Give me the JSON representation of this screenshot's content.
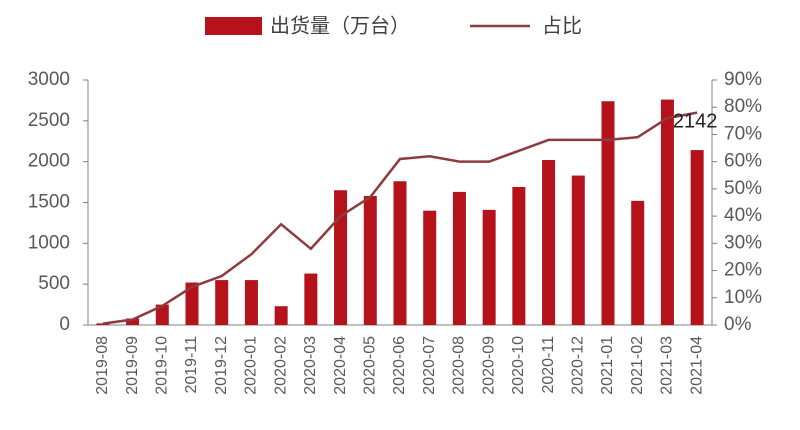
{
  "chart_data": {
    "type": "bar_line",
    "categories": [
      "2019-08",
      "2019-09",
      "2019-10",
      "2019-11",
      "2019-12",
      "2020-01",
      "2020-02",
      "2020-03",
      "2020-04",
      "2020-05",
      "2020-06",
      "2020-07",
      "2020-08",
      "2020-09",
      "2020-10",
      "2020-11",
      "2020-12",
      "2021-01",
      "2021-02",
      "2021-03",
      "2021-04"
    ],
    "series": [
      {
        "name": "出货量（万台）",
        "type": "bar",
        "color": "#b5121b",
        "values": [
          20,
          80,
          250,
          520,
          550,
          550,
          230,
          630,
          1650,
          1580,
          1760,
          1400,
          1630,
          1410,
          1690,
          2020,
          1830,
          2740,
          1520,
          2760,
          2142
        ]
      },
      {
        "name": "占比",
        "type": "line",
        "axis": "y2",
        "color": "#8e3b3f",
        "values": [
          0.5,
          2,
          7,
          14,
          18,
          26,
          37,
          28,
          40,
          47,
          61,
          62,
          60,
          60,
          64,
          68,
          68,
          68,
          69,
          76,
          78
        ]
      }
    ],
    "annotations": [
      {
        "text": "2142",
        "category": "2021-04"
      }
    ],
    "ylim": [
      0,
      3000
    ],
    "yticks": [
      0,
      500,
      1000,
      1500,
      2000,
      2500,
      3000
    ],
    "y2lim": [
      0,
      90
    ],
    "y2ticks": [
      {
        "value": 0,
        "label": "0%"
      },
      {
        "value": 10,
        "label": "10%"
      },
      {
        "value": 20,
        "label": "20%"
      },
      {
        "value": 30,
        "label": "30%"
      },
      {
        "value": 40,
        "label": "40%"
      },
      {
        "value": 50,
        "label": "50%"
      },
      {
        "value": 60,
        "label": "60%"
      },
      {
        "value": 70,
        "label": "70%"
      },
      {
        "value": 80,
        "label": "80%"
      },
      {
        "value": 90,
        "label": "90%"
      }
    ],
    "grid": false,
    "legend": "top"
  }
}
